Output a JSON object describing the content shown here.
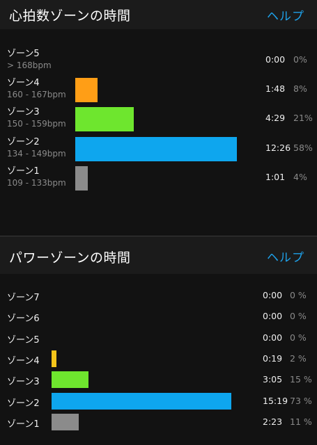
{
  "hr": {
    "title": "心拍数ゾーンの時間",
    "help": "ヘルプ",
    "zones": [
      {
        "name": "ゾーン5",
        "range": "> 168bpm",
        "time": "0:00",
        "pct": "0%",
        "share": 0,
        "color": ""
      },
      {
        "name": "ゾーン4",
        "range": "160 - 167bpm",
        "time": "1:48",
        "pct": "8%",
        "share": 0.08,
        "color": "#ff9e16"
      },
      {
        "name": "ゾーン3",
        "range": "150 - 159bpm",
        "time": "4:29",
        "pct": "21%",
        "share": 0.21,
        "color": "#6ee62e"
      },
      {
        "name": "ゾーン2",
        "range": "134 - 149bpm",
        "time": "12:26",
        "pct": "58%",
        "share": 0.58,
        "color": "#0ea6ee"
      },
      {
        "name": "ゾーン1",
        "range": "109 - 133bpm",
        "time": "1:01",
        "pct": "4%",
        "share": 0.04,
        "color": "#8b8b8b"
      }
    ]
  },
  "power": {
    "title": "パワーゾーンの時間",
    "help": "ヘルプ",
    "zones": [
      {
        "name": "ゾーン7",
        "time": "0:00",
        "pct": "0 %",
        "share": 0,
        "color": ""
      },
      {
        "name": "ゾーン6",
        "time": "0:00",
        "pct": "0 %",
        "share": 0,
        "color": ""
      },
      {
        "name": "ゾーン5",
        "time": "0:00",
        "pct": "0 %",
        "share": 0,
        "color": ""
      },
      {
        "name": "ゾーン4",
        "time": "0:19",
        "pct": "2 %",
        "share": 0.02,
        "color": "#f5c51a"
      },
      {
        "name": "ゾーン3",
        "time": "3:05",
        "pct": "15 %",
        "share": 0.15,
        "color": "#6ee62e"
      },
      {
        "name": "ゾーン2",
        "time": "15:19",
        "pct": "73 %",
        "share": 0.73,
        "color": "#0ea6ee"
      },
      {
        "name": "ゾーン1",
        "time": "2:23",
        "pct": "11 %",
        "share": 0.11,
        "color": "#8b8b8b"
      }
    ]
  }
}
